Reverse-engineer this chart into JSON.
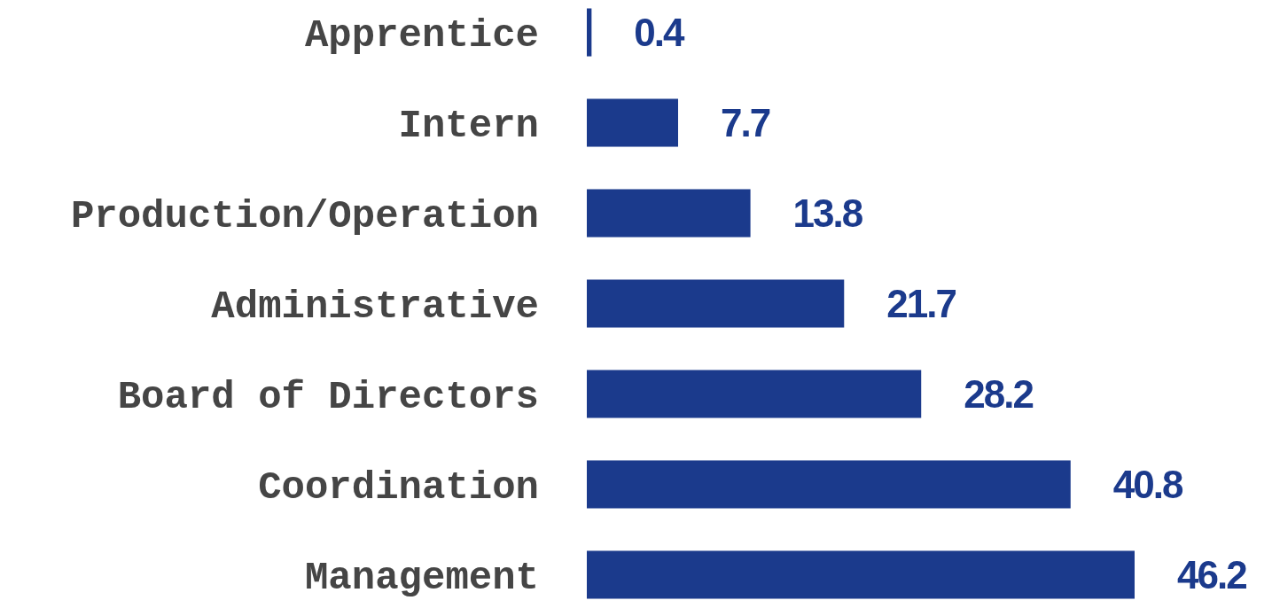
{
  "chart_data": {
    "type": "bar",
    "orientation": "horizontal",
    "categories": [
      "Apprentice",
      "Intern",
      "Production/Operation",
      "Administrative",
      "Board of Directors",
      "Coordination",
      "Management"
    ],
    "values": [
      0.4,
      7.7,
      13.8,
      21.7,
      28.2,
      40.8,
      46.2
    ],
    "color": "#1b3a8c",
    "data_labels": true
  }
}
